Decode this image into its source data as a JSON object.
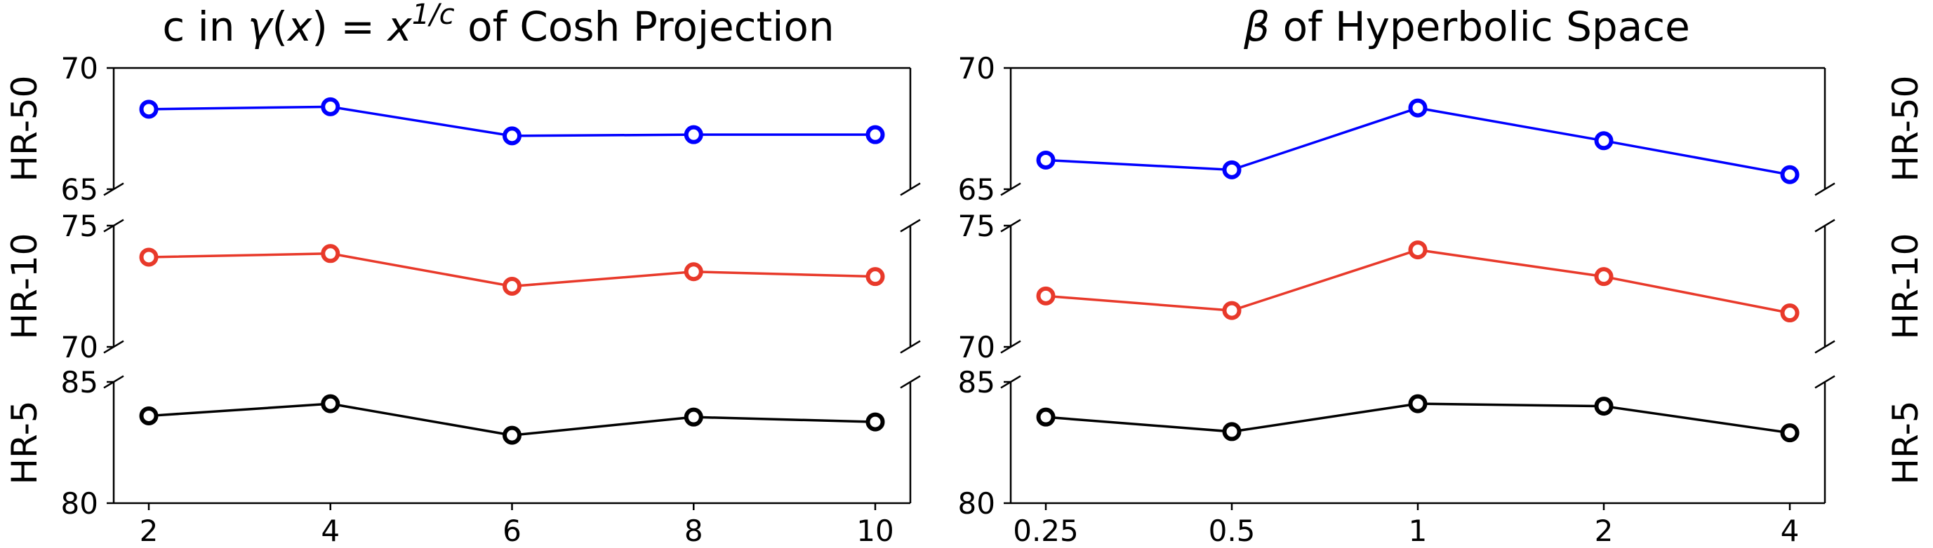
{
  "chart_data": [
    {
      "type": "line",
      "title": "c in γ(x) = x^{1/c} of Cosh Projection",
      "title_parts": {
        "prefix": "c in ",
        "gamma": "γ",
        "mid": "(",
        "x": "x",
        "close": ")",
        "eq": " = ",
        "base": "x",
        "exp": "1/c",
        "suffix": " of Cosh Projection"
      },
      "categories": [
        "2",
        "4",
        "6",
        "8",
        "10"
      ],
      "ylabel_side": "left",
      "series": [
        {
          "name": "HR-50",
          "color": "#0000ff",
          "ylim": [
            65,
            70
          ],
          "yticks": [
            "70",
            "65"
          ],
          "values": [
            68.3,
            68.4,
            67.2,
            67.25,
            67.25
          ]
        },
        {
          "name": "HR-10",
          "color": "#e8392a",
          "ylim": [
            70,
            75
          ],
          "yticks": [
            "75",
            "70"
          ],
          "values": [
            73.7,
            73.85,
            72.5,
            73.1,
            72.9
          ]
        },
        {
          "name": "HR-5",
          "color": "#000000",
          "ylim": [
            80,
            85
          ],
          "yticks": [
            "85",
            "80"
          ],
          "values": [
            83.6,
            84.1,
            82.8,
            83.55,
            83.35
          ]
        }
      ]
    },
    {
      "type": "line",
      "title": "β  of Hyperbolic Space",
      "title_parts": {
        "beta": "β",
        "suffix": "  of Hyperbolic Space"
      },
      "categories": [
        "0.25",
        "0.5",
        "1",
        "2",
        "4"
      ],
      "ylabel_side": "right",
      "series": [
        {
          "name": "HR-50",
          "color": "#0000ff",
          "ylim": [
            65,
            70
          ],
          "yticks": [
            "70",
            "65"
          ],
          "values": [
            66.2,
            65.8,
            68.35,
            67.0,
            65.6
          ]
        },
        {
          "name": "HR-10",
          "color": "#e8392a",
          "ylim": [
            70,
            75
          ],
          "yticks": [
            "75",
            "70"
          ],
          "values": [
            72.1,
            71.5,
            74.0,
            72.9,
            71.4
          ]
        },
        {
          "name": "HR-5",
          "color": "#000000",
          "ylim": [
            80,
            85
          ],
          "yticks": [
            "85",
            "80"
          ],
          "values": [
            83.55,
            82.95,
            84.1,
            84.0,
            82.9
          ]
        }
      ]
    }
  ]
}
